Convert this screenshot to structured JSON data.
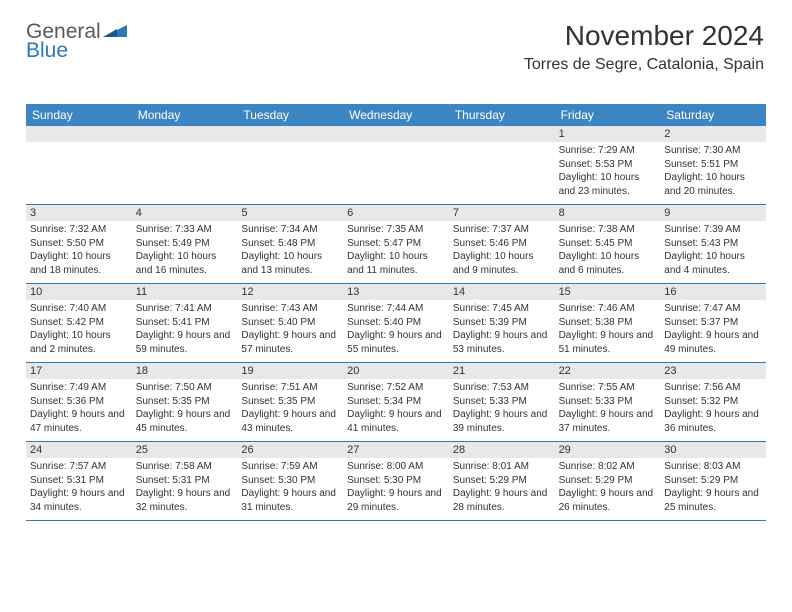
{
  "logo": {
    "part1": "General",
    "part2": "Blue"
  },
  "title": "November 2024",
  "location": "Torres de Segre, Catalonia, Spain",
  "colors": {
    "header_bg": "#3c85c3",
    "border": "#2b79b9",
    "text": "#333333",
    "daynum_bg": "#e8e8e8",
    "logo_blue": "#2b79b9",
    "logo_gray": "#5a5a5a"
  },
  "day_names": [
    "Sunday",
    "Monday",
    "Tuesday",
    "Wednesday",
    "Thursday",
    "Friday",
    "Saturday"
  ],
  "weeks": [
    [
      null,
      null,
      null,
      null,
      null,
      {
        "n": "1",
        "sr": "7:29 AM",
        "ss": "5:53 PM",
        "dl": "10 hours and 23 minutes."
      },
      {
        "n": "2",
        "sr": "7:30 AM",
        "ss": "5:51 PM",
        "dl": "10 hours and 20 minutes."
      }
    ],
    [
      {
        "n": "3",
        "sr": "7:32 AM",
        "ss": "5:50 PM",
        "dl": "10 hours and 18 minutes."
      },
      {
        "n": "4",
        "sr": "7:33 AM",
        "ss": "5:49 PM",
        "dl": "10 hours and 16 minutes."
      },
      {
        "n": "5",
        "sr": "7:34 AM",
        "ss": "5:48 PM",
        "dl": "10 hours and 13 minutes."
      },
      {
        "n": "6",
        "sr": "7:35 AM",
        "ss": "5:47 PM",
        "dl": "10 hours and 11 minutes."
      },
      {
        "n": "7",
        "sr": "7:37 AM",
        "ss": "5:46 PM",
        "dl": "10 hours and 9 minutes."
      },
      {
        "n": "8",
        "sr": "7:38 AM",
        "ss": "5:45 PM",
        "dl": "10 hours and 6 minutes."
      },
      {
        "n": "9",
        "sr": "7:39 AM",
        "ss": "5:43 PM",
        "dl": "10 hours and 4 minutes."
      }
    ],
    [
      {
        "n": "10",
        "sr": "7:40 AM",
        "ss": "5:42 PM",
        "dl": "10 hours and 2 minutes."
      },
      {
        "n": "11",
        "sr": "7:41 AM",
        "ss": "5:41 PM",
        "dl": "9 hours and 59 minutes."
      },
      {
        "n": "12",
        "sr": "7:43 AM",
        "ss": "5:40 PM",
        "dl": "9 hours and 57 minutes."
      },
      {
        "n": "13",
        "sr": "7:44 AM",
        "ss": "5:40 PM",
        "dl": "9 hours and 55 minutes."
      },
      {
        "n": "14",
        "sr": "7:45 AM",
        "ss": "5:39 PM",
        "dl": "9 hours and 53 minutes."
      },
      {
        "n": "15",
        "sr": "7:46 AM",
        "ss": "5:38 PM",
        "dl": "9 hours and 51 minutes."
      },
      {
        "n": "16",
        "sr": "7:47 AM",
        "ss": "5:37 PM",
        "dl": "9 hours and 49 minutes."
      }
    ],
    [
      {
        "n": "17",
        "sr": "7:49 AM",
        "ss": "5:36 PM",
        "dl": "9 hours and 47 minutes."
      },
      {
        "n": "18",
        "sr": "7:50 AM",
        "ss": "5:35 PM",
        "dl": "9 hours and 45 minutes."
      },
      {
        "n": "19",
        "sr": "7:51 AM",
        "ss": "5:35 PM",
        "dl": "9 hours and 43 minutes."
      },
      {
        "n": "20",
        "sr": "7:52 AM",
        "ss": "5:34 PM",
        "dl": "9 hours and 41 minutes."
      },
      {
        "n": "21",
        "sr": "7:53 AM",
        "ss": "5:33 PM",
        "dl": "9 hours and 39 minutes."
      },
      {
        "n": "22",
        "sr": "7:55 AM",
        "ss": "5:33 PM",
        "dl": "9 hours and 37 minutes."
      },
      {
        "n": "23",
        "sr": "7:56 AM",
        "ss": "5:32 PM",
        "dl": "9 hours and 36 minutes."
      }
    ],
    [
      {
        "n": "24",
        "sr": "7:57 AM",
        "ss": "5:31 PM",
        "dl": "9 hours and 34 minutes."
      },
      {
        "n": "25",
        "sr": "7:58 AM",
        "ss": "5:31 PM",
        "dl": "9 hours and 32 minutes."
      },
      {
        "n": "26",
        "sr": "7:59 AM",
        "ss": "5:30 PM",
        "dl": "9 hours and 31 minutes."
      },
      {
        "n": "27",
        "sr": "8:00 AM",
        "ss": "5:30 PM",
        "dl": "9 hours and 29 minutes."
      },
      {
        "n": "28",
        "sr": "8:01 AM",
        "ss": "5:29 PM",
        "dl": "9 hours and 28 minutes."
      },
      {
        "n": "29",
        "sr": "8:02 AM",
        "ss": "5:29 PM",
        "dl": "9 hours and 26 minutes."
      },
      {
        "n": "30",
        "sr": "8:03 AM",
        "ss": "5:29 PM",
        "dl": "9 hours and 25 minutes."
      }
    ]
  ],
  "labels": {
    "sunrise": "Sunrise: ",
    "sunset": "Sunset: ",
    "daylight": "Daylight: "
  }
}
